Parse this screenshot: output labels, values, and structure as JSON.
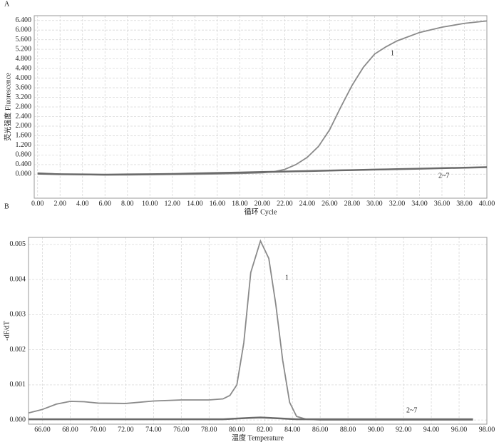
{
  "chart_data": [
    {
      "type": "line",
      "panel": "A",
      "xlabel": "循环 Cycle",
      "ylabel": "荧光强度 Fluorescence",
      "x": [
        0,
        2,
        4,
        6,
        8,
        10,
        12,
        14,
        16,
        18,
        20,
        21,
        22,
        23,
        24,
        25,
        26,
        27,
        28,
        29,
        30,
        31,
        32,
        34,
        36,
        38,
        40
      ],
      "series": [
        {
          "name": "1",
          "color": "#8a8a8a",
          "values": [
            0.05,
            0,
            -0.02,
            -0.03,
            -0.03,
            -0.02,
            -0.01,
            0,
            0.01,
            0.03,
            0.06,
            0.1,
            0.2,
            0.4,
            0.7,
            1.15,
            1.85,
            2.8,
            3.7,
            4.45,
            5.0,
            5.3,
            5.55,
            5.9,
            6.12,
            6.28,
            6.38
          ]
        },
        {
          "name": "2~7",
          "color": "#6a6a6a",
          "values": [
            0.02,
            0,
            -0.01,
            -0.02,
            -0.01,
            0,
            0.01,
            0.03,
            0.05,
            0.07,
            0.09,
            0.1,
            0.11,
            0.12,
            0.13,
            0.14,
            0.15,
            0.16,
            0.17,
            0.18,
            0.19,
            0.2,
            0.21,
            0.23,
            0.25,
            0.27,
            0.29
          ]
        }
      ],
      "xlim": [
        -0.3,
        40
      ],
      "ylim": [
        -1.0,
        6.6
      ],
      "xticks": [
        {
          "value": 0,
          "label": "0.00"
        },
        {
          "value": 2,
          "label": "2.00"
        },
        {
          "value": 4,
          "label": "4.00"
        },
        {
          "value": 6,
          "label": "6.00"
        },
        {
          "value": 8,
          "label": "8.00"
        },
        {
          "value": 10,
          "label": "10.00"
        },
        {
          "value": 12,
          "label": "12.00"
        },
        {
          "value": 14,
          "label": "14.00"
        },
        {
          "value": 16,
          "label": "16.00"
        },
        {
          "value": 18,
          "label": "18.00"
        },
        {
          "value": 20,
          "label": "20.00"
        },
        {
          "value": 22,
          "label": "22.00"
        },
        {
          "value": 24,
          "label": "24.00"
        },
        {
          "value": 26,
          "label": "26.00"
        },
        {
          "value": 28,
          "label": "28.00"
        },
        {
          "value": 30,
          "label": "30.00"
        },
        {
          "value": 32,
          "label": "32.00"
        },
        {
          "value": 34,
          "label": "34.00"
        },
        {
          "value": 36,
          "label": "36.00"
        },
        {
          "value": 38,
          "label": "38.00"
        },
        {
          "value": 40,
          "label": "40.00"
        }
      ],
      "yticks": [
        {
          "value": 0,
          "label": "0.000"
        },
        {
          "value": 0.4,
          "label": "0.400"
        },
        {
          "value": 0.8,
          "label": "0.800"
        },
        {
          "value": 1.2,
          "label": "1.200"
        },
        {
          "value": 1.6,
          "label": "1.600"
        },
        {
          "value": 2.0,
          "label": "2.000"
        },
        {
          "value": 2.4,
          "label": "2.400"
        },
        {
          "value": 2.8,
          "label": "2.800"
        },
        {
          "value": 3.2,
          "label": "3.200"
        },
        {
          "value": 3.6,
          "label": "3.600"
        },
        {
          "value": 4.0,
          "label": "4.000"
        },
        {
          "value": 4.4,
          "label": "4.400"
        },
        {
          "value": 4.8,
          "label": "4.800"
        },
        {
          "value": 5.2,
          "label": "5.200"
        },
        {
          "value": 5.6,
          "label": "5.600"
        },
        {
          "value": 6.0,
          "label": "6.000"
        },
        {
          "value": 6.4,
          "label": "6.400"
        }
      ],
      "grid": true
    },
    {
      "type": "line",
      "panel": "B",
      "xlabel": "温度  Temperature",
      "ylabel": "-dF/dT",
      "x": [
        65,
        66,
        67,
        68,
        69,
        70,
        72,
        74,
        76,
        78,
        79,
        79.5,
        80,
        80.5,
        81,
        81.7,
        82.3,
        82.8,
        83.3,
        83.8,
        84.3,
        85,
        86,
        88,
        90,
        92,
        94,
        96,
        97
      ],
      "series": [
        {
          "name": "1",
          "color": "#8a8a8a",
          "values": [
            0.0002,
            0.0003,
            0.00045,
            0.00053,
            0.00052,
            0.00048,
            0.00047,
            0.00054,
            0.00057,
            0.00057,
            0.0006,
            0.0007,
            0.001,
            0.0022,
            0.0042,
            0.0051,
            0.0046,
            0.0033,
            0.0017,
            0.0005,
            0.0001,
            2e-05,
            0,
            0,
            0,
            0,
            0,
            0,
            0
          ]
        },
        {
          "name": "2~7",
          "color": "#6a6a6a",
          "values": [
            2e-05,
            2e-05,
            2e-05,
            2e-05,
            2e-05,
            2e-05,
            2e-05,
            2e-05,
            2e-05,
            2e-05,
            2e-05,
            3e-05,
            4e-05,
            5e-05,
            6e-05,
            7e-05,
            6e-05,
            5e-05,
            4e-05,
            3e-05,
            2e-05,
            2e-05,
            2e-05,
            2e-05,
            2e-05,
            2e-05,
            2e-05,
            2e-05,
            2e-05
          ]
        }
      ],
      "xlim": [
        65,
        98
      ],
      "ylim": [
        -0.00012,
        0.0052
      ],
      "xticks": [
        {
          "value": 66,
          "label": "66.00"
        },
        {
          "value": 68,
          "label": "68.00"
        },
        {
          "value": 70,
          "label": "70.00"
        },
        {
          "value": 72,
          "label": "72.00"
        },
        {
          "value": 74,
          "label": "74.00"
        },
        {
          "value": 76,
          "label": "76.00"
        },
        {
          "value": 78,
          "label": "78.00"
        },
        {
          "value": 80,
          "label": "80.00"
        },
        {
          "value": 82,
          "label": "82.00"
        },
        {
          "value": 84,
          "label": "84.00"
        },
        {
          "value": 86,
          "label": "86.00"
        },
        {
          "value": 88,
          "label": "88.00"
        },
        {
          "value": 90,
          "label": "90.00"
        },
        {
          "value": 92,
          "label": "92.00"
        },
        {
          "value": 94,
          "label": "94.00"
        },
        {
          "value": 96,
          "label": "96.00"
        },
        {
          "value": 98,
          "label": "98.00"
        }
      ],
      "yticks": [
        {
          "value": 0,
          "label": "0.000"
        },
        {
          "value": 0.001,
          "label": "0.001"
        },
        {
          "value": 0.002,
          "label": "0.002"
        },
        {
          "value": 0.003,
          "label": "0.003"
        },
        {
          "value": 0.004,
          "label": "0.004"
        },
        {
          "value": 0.005,
          "label": "0.005"
        }
      ],
      "grid": true
    }
  ]
}
